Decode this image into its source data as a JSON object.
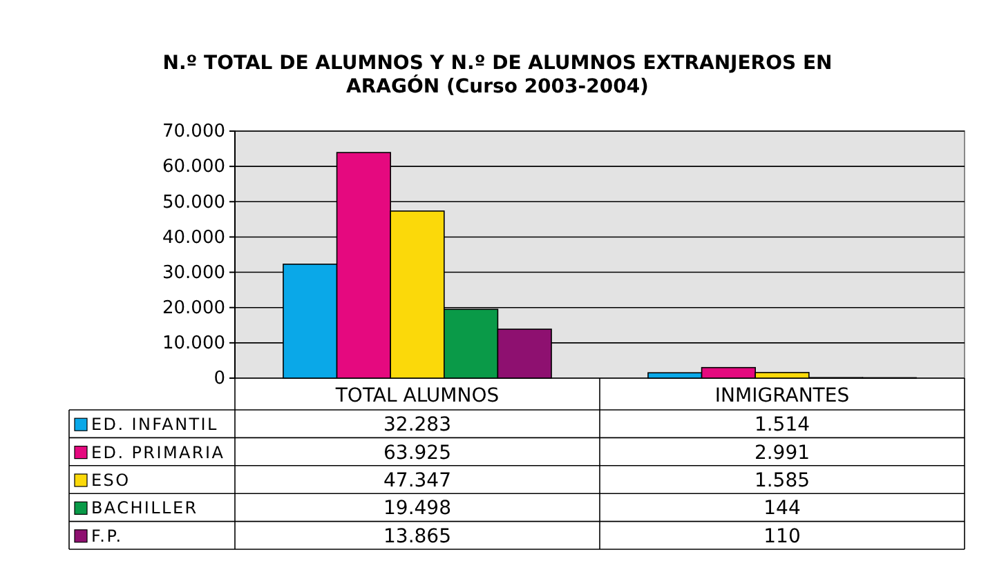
{
  "chart_data": {
    "type": "bar",
    "title": "N.º TOTAL DE ALUMNOS Y N.º DE ALUMNOS EXTRANJEROS EN ARAGÓN (Curso 2003-2004)",
    "categories": [
      "TOTAL ALUMNOS",
      "INMIGRANTES"
    ],
    "series": [
      {
        "name": "ED. INFANTIL",
        "color": "#0aa8e8",
        "values": [
          32283,
          1514
        ],
        "value_labels": [
          "32.283",
          "1.514"
        ]
      },
      {
        "name": "ED. PRIMARIA",
        "color": "#e5097f",
        "values": [
          63925,
          2991
        ],
        "value_labels": [
          "63.925",
          "2.991"
        ]
      },
      {
        "name": "ESO",
        "color": "#fbd90a",
        "values": [
          47347,
          1585
        ],
        "value_labels": [
          "47.347",
          "1.585"
        ]
      },
      {
        "name": "BACHILLER",
        "color": "#0a9a48",
        "values": [
          19498,
          144
        ],
        "value_labels": [
          "19.498",
          "144"
        ]
      },
      {
        "name": "F.P.",
        "color": "#8e1070",
        "values": [
          13865,
          110
        ],
        "value_labels": [
          "13.865",
          "110"
        ]
      }
    ],
    "ylim": [
      0,
      70000
    ],
    "yticks": [
      0,
      {
        "value": 10000,
        "label": "10.000"
      },
      {
        "value": 20000,
        "label": "20.000"
      },
      {
        "value": 30000,
        "label": "30.000"
      },
      {
        "value": 40000,
        "label": "40.000"
      },
      {
        "value": 50000,
        "label": "50.000"
      },
      {
        "value": 60000,
        "label": "60.000"
      },
      {
        "value": 70000,
        "label": "70.000"
      }
    ],
    "grid": "y",
    "legend": "bottom"
  }
}
